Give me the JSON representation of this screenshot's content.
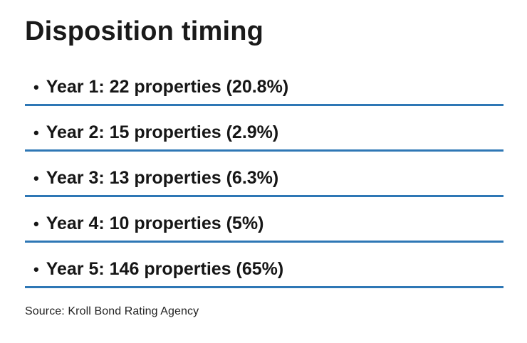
{
  "page": {
    "title": "Disposition timing",
    "bullet_glyph": "•",
    "source": "Source: Kroll Bond Rating Agency",
    "accent_color": "#2e77b5",
    "text_color": "#161616",
    "background_color": "#ffffff"
  },
  "items": [
    {
      "label": "Year 1: 22 properties (20.8%)"
    },
    {
      "label": "Year 2: 15 properties (2.9%)"
    },
    {
      "label": "Year 3: 13 properties (6.3%)"
    },
    {
      "label": "Year 4: 10 properties (5%)"
    },
    {
      "label": "Year 5: 146 properties (65%)"
    }
  ],
  "chart_data": {
    "type": "table",
    "title": "Disposition timing",
    "categories": [
      "Year 1",
      "Year 2",
      "Year 3",
      "Year 4",
      "Year 5"
    ],
    "series": [
      {
        "name": "properties",
        "values": [
          22,
          15,
          13,
          10,
          146
        ]
      },
      {
        "name": "percent",
        "values": [
          20.8,
          2.9,
          6.3,
          5,
          65
        ]
      }
    ],
    "source": "Source: Kroll Bond Rating Agency",
    "legend_position": "none",
    "grid": false,
    "notes": "Rendered as a bulleted list; each row underlined with a blue rule (#2e77b5)"
  }
}
